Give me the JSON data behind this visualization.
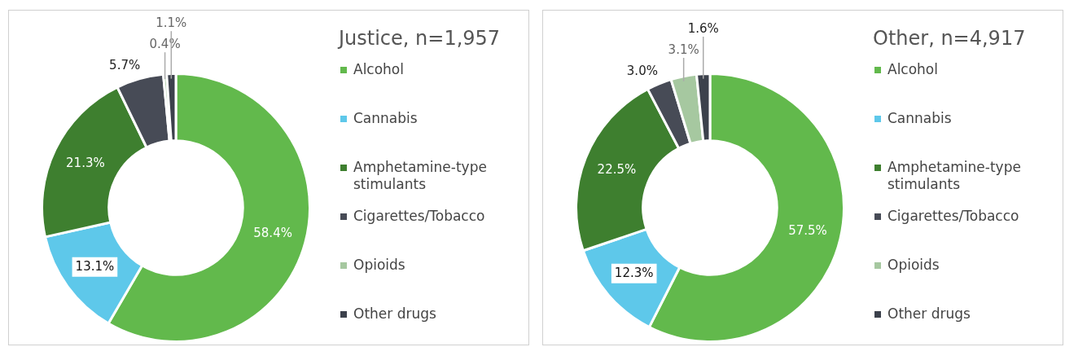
{
  "chart_data": [
    {
      "type": "donut",
      "title": "Justice, n=1,957",
      "legend": "right",
      "categories": [
        "Alcohol",
        "Cannabis",
        "Amphetamine-type stimulants",
        "Cigarettes/Tobacco",
        "Opioids",
        "Other drugs"
      ],
      "values": [
        58.4,
        13.1,
        21.3,
        5.7,
        0.4,
        1.1
      ],
      "colors": [
        "#62b94c",
        "#5ec8ea",
        "#3e7f2f",
        "#474b56",
        "#a6c8a0",
        "#3c414c"
      ],
      "value_labels": [
        "58.4%",
        "13.1%",
        "21.3%",
        "5.7%",
        "0.4%",
        "1.1%"
      ]
    },
    {
      "type": "donut",
      "title": "Other, n=4,917",
      "legend": "right",
      "categories": [
        "Alcohol",
        "Cannabis",
        "Amphetamine-type stimulants",
        "Cigarettes/Tobacco",
        "Opioids",
        "Other drugs"
      ],
      "values": [
        57.5,
        12.3,
        22.5,
        3.0,
        3.1,
        1.6
      ],
      "colors": [
        "#62b94c",
        "#5ec8ea",
        "#3e7f2f",
        "#474b56",
        "#a6c8a0",
        "#3c414c"
      ],
      "value_labels": [
        "57.5%",
        "12.3%",
        "22.5%",
        "3.0%",
        "3.1%",
        "1.6%"
      ]
    }
  ]
}
